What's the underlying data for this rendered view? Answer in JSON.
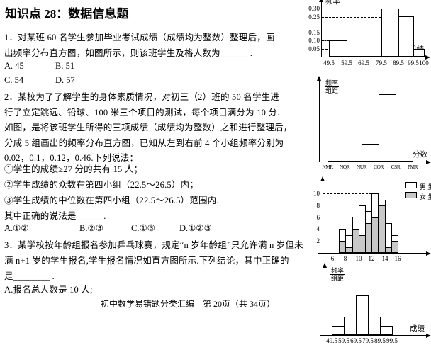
{
  "page": {
    "title": "知识点 28：数据信息题",
    "footer": "初中数学易错题分类汇编　第 20页（共 34页）"
  },
  "q1": {
    "line1": "1．对某班 60 名学生参加毕业考试成绩（成绩均为整数）整理后，画",
    "line2": "出频率分布直方图，如图所示，则该班学生及格人数为______ .",
    "optA": "A. 45",
    "optB": "B. 51",
    "optC": "C. 54",
    "optD": "D. 57"
  },
  "q2": {
    "line1": "2．某校为了了解学生的身体素质情况，对初三（2）班的 50 名学生进",
    "line2": "行了立定跳远、铅球、100 米三个项目的测试，每个项目满分为 10 分.",
    "line3": "如图，是将该班学生所得的三项成绩（成绩均为整数）之和进行整理后，",
    "line4": "分成 5 组画出的频率分布直方图，已知从左到右前 4 个小组频率分别为",
    "line5": "0.02，0.1，0.12，0.46.下列说法：",
    "item1": "①学生的成绩≥27 分的共有 15 人；",
    "item2": "②学生成绩的众数在第四小组（22.5～26.5）内；",
    "item3": "③学生成绩的中位数在第四小组（22.5～26.5）范围内.",
    "blank": "其中正确的说法是______.",
    "optA": "A.①②",
    "optB": "B.②③",
    "optC": "C.①③",
    "optD": "D.①②③"
  },
  "q3": {
    "line1": "3．某学校按年龄组报名参加乒乓球赛，规定“n 岁年龄组”只允许满 n 岁但未",
    "line2": "满 n+1 岁的学生报名,学生报名情况如直方图所示.下列结论，其中正确的",
    "line3": "是________ .",
    "optA": "A.报名总人数是 10 人;"
  },
  "chart_data": [
    {
      "type": "bar",
      "title": "",
      "ylabel": "频率",
      "xlabel": "成绩",
      "x_tick_labels": [
        "49.5",
        "59.5",
        "69.5",
        "79.5",
        "89.5",
        "99.5",
        "100"
      ],
      "y_ticks": [
        0.05,
        0.1,
        0.15,
        0.25,
        0.3
      ],
      "values": [
        0.1,
        0.15,
        0.15,
        0.3,
        0.25,
        0.05
      ],
      "ylim": [
        0,
        0.33
      ],
      "grid": "dashed guides from y-axis to bar tops"
    },
    {
      "type": "bar",
      "title": "",
      "ylabel_num": "频率",
      "ylabel_den": "组距",
      "xlabel": "分数",
      "x_tick_labels": [
        "NMR",
        "NQR",
        "NUR",
        "COR",
        "CSR",
        "PMR"
      ],
      "values": [
        0.02,
        0.1,
        0.12,
        0.46,
        0.3
      ],
      "note": "五组频率分布直方图，前四组频率 0.02,0.1,0.12,0.46"
    },
    {
      "type": "stacked-bar",
      "title": "",
      "xlabel": "",
      "x_tick_labels": [
        "6",
        "8",
        "10",
        "12",
        "14",
        "16"
      ],
      "y_ticks": [
        2,
        4,
        6,
        8,
        10
      ],
      "age_start": 7,
      "series": [
        {
          "name": "男 生",
          "color": "#ffffff",
          "values": [
            2,
            2,
            2,
            5,
            2,
            4,
            1,
            4,
            1
          ]
        },
        {
          "name": "女 生",
          "color": "#c8c8c8",
          "values": [
            2,
            1,
            4,
            3,
            5,
            6,
            8,
            1,
            2
          ]
        }
      ],
      "guide_level": 10,
      "legend_position": "top-right"
    },
    {
      "type": "bar",
      "title": "",
      "ylabel_num": "频率",
      "ylabel_den": "组距",
      "xlabel": "成绩",
      "x_tick_labels": [
        "49.5",
        "59.5",
        "69.5",
        "79.5",
        "89.5",
        "99.5"
      ],
      "relative_heights": [
        1,
        2,
        4.3,
        2,
        1
      ]
    }
  ]
}
